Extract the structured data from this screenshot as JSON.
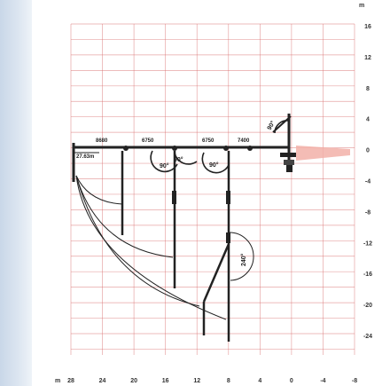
{
  "diagram": {
    "x_axis": {
      "unit": "m",
      "labels": [
        "28",
        "24",
        "20",
        "16",
        "12",
        "8",
        "4",
        "0",
        "-4",
        "-8"
      ]
    },
    "y_axis": {
      "unit": "m",
      "labels": [
        "16",
        "12",
        "8",
        "4",
        "0",
        "-4",
        "-8",
        "-12",
        "-16",
        "-20",
        "-24"
      ]
    },
    "boom_length_label": "27.63m",
    "section_dimensions": [
      "8680",
      "6750",
      "6750",
      "7400"
    ],
    "angles": [
      "90°",
      "90°",
      "90°",
      "240°",
      "90°"
    ],
    "colors": {
      "grid": "#d86a6a",
      "structure": "#222222",
      "accent": "#e03c3c",
      "background_band": "#c9d7e8"
    }
  }
}
